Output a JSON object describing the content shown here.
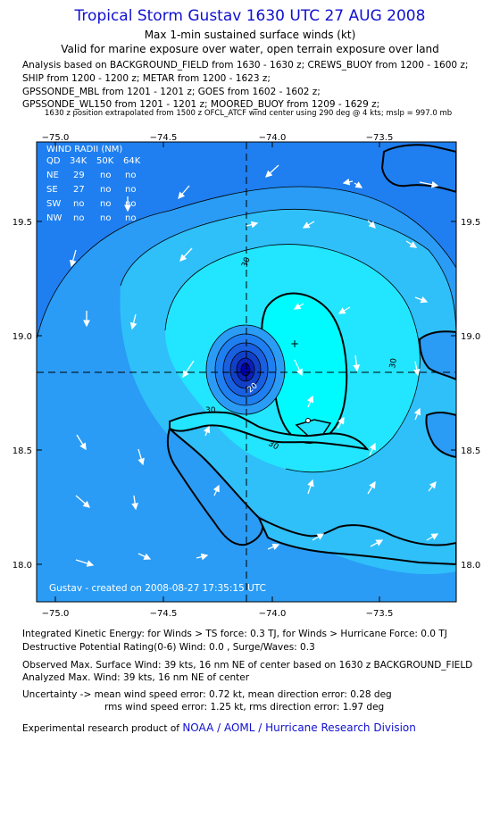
{
  "header": {
    "title": "Tropical Storm Gustav 1630 UTC 27 AUG 2008",
    "subtitle": "Max 1-min sustained surface winds (kt)",
    "validity": "Valid for marine exposure over water, open terrain exposure over land",
    "analysis_lines": [
      "Analysis based on  BACKGROUND_FIELD from 1630 - 1630 z;  CREWS_BUOY from 1200 - 1600 z;",
      "SHIP from 1200 - 1200 z;  METAR from 1200 - 1623 z;",
      "GPSSONDE_MBL from 1201 - 1201 z;  GOES from 1602 - 1602 z;",
      "GPSSONDE_WL150 from 1201 - 1201 z;  MOORED_BUOY from 1209 - 1629 z;"
    ],
    "position_note": "1630 z position extrapolated from 1500 z OFCL_ATCF wind center using 290 deg @ 4 kts; mslp = 997.0 mb"
  },
  "map": {
    "lon_labels": [
      "−75.0",
      "−74.5",
      "−74.0",
      "−73.5"
    ],
    "lat_labels": [
      "19.5",
      "19.0",
      "18.5",
      "18.0"
    ],
    "contour_labels": [
      "30",
      "30",
      "30",
      "30",
      "20"
    ],
    "wind_radii": {
      "title": "WIND RADII (NM)",
      "header": [
        "QD",
        "34K",
        "50K",
        "64K"
      ],
      "rows": [
        [
          "NE",
          "29",
          "no",
          "no"
        ],
        [
          "SE",
          "27",
          "no",
          "no"
        ],
        [
          "SW",
          "no",
          "no",
          "no"
        ],
        [
          "NW",
          "no",
          "no",
          "no"
        ]
      ]
    },
    "created": "Gustav - created on 2008-08-27 17:35:15 UTC",
    "colors": {
      "ocean_base": "#1f7ff0",
      "band_20": "#2a9cf5",
      "band_25": "#2fc0fa",
      "band_30": "#22e6ff",
      "band_35": "#00fbff",
      "eye_dark": "#0000a8"
    }
  },
  "footer": {
    "ike": "Integrated Kinetic Energy:  for Winds > TS force: 0.3 TJ,  for Winds > Hurricane Force: 0.0 TJ",
    "dp": "Destructive Potential Rating(0-6)  Wind: 0.0 , Surge/Waves: 0.3",
    "observed": "Observed Max. Surface Wind: 39 kts, 16 nm NE of center based on 1630 z BACKGROUND_FIELD",
    "analyzed": "Analyzed Max. Wind: 39 kts, 16 nm NE of center",
    "uncertainty1": "Uncertainty -> mean wind speed error: 0.72 kt,   mean direction error: 0.28 deg",
    "uncertainty2": "rms wind speed error: 1.25 kt,   rms direction error: 1.97 deg",
    "research_prefix": "Experimental research product of",
    "research_org": "NOAA / AOML / Hurricane Research Division"
  }
}
